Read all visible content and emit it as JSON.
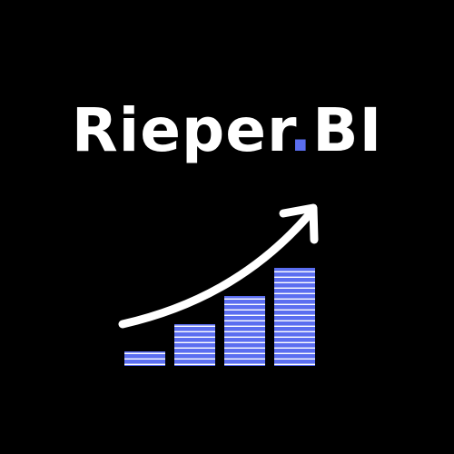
{
  "brand": {
    "name_part1": "Rieper",
    "separator": ".",
    "name_part2": "BI"
  },
  "logo": {
    "icon": "growth-chart-icon",
    "bar_levels": [
      0.15,
      0.43,
      0.71,
      1.0
    ],
    "arrow_icon": "trend-up-arrow-icon"
  },
  "colors": {
    "background": "#000000",
    "text": "#ffffff",
    "accent": "#5b6ef0",
    "bar_stripe": "#ffffff"
  }
}
